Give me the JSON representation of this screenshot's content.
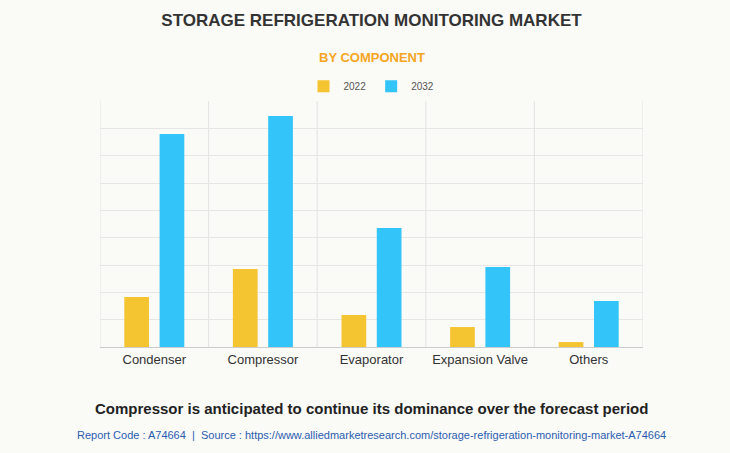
{
  "chart_data": {
    "type": "bar",
    "title": "STORAGE REFRIGERATION MONITORING MARKET",
    "subtitle": "BY COMPONENT",
    "annotations": [
      "Compressor is anticipated to continue its dominance over the forecast period",
      "Report Code : A74664  |  Source : https://www.alliedmarketresearch.com/storage-refrigeration-monitoring-market-A74664"
    ],
    "categories": [
      "Condenser",
      "Compressor",
      "Evaporator",
      "Expansion Valve",
      "Others"
    ],
    "series": [
      {
        "name": "2022",
        "color": "#f5c431",
        "values": [
          1.83,
          2.85,
          1.17,
          0.73,
          0.18
        ]
      },
      {
        "name": "2032",
        "color": "#33c4f9",
        "values": [
          7.79,
          8.45,
          4.35,
          2.93,
          1.68
        ]
      }
    ],
    "ylim": [
      0,
      9
    ],
    "yticks": [
      0,
      1,
      2,
      3,
      4,
      5,
      6,
      7,
      8,
      9
    ],
    "grid": true,
    "legend": "top",
    "tick_labels": "x"
  }
}
